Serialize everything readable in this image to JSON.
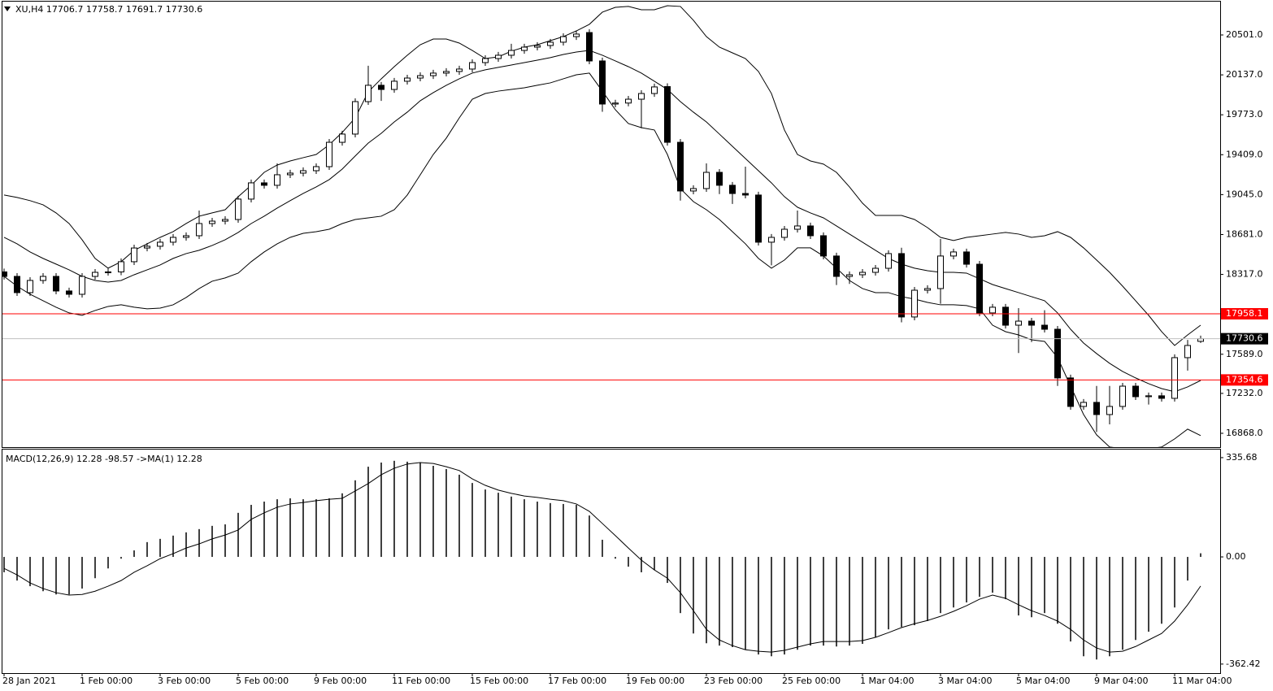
{
  "chart_data": [
    {
      "type": "candlestick",
      "title": "XU,H4  17706.7 17758.7 17691.7 17730.6",
      "categories": [
        "28 Jan 2021",
        null,
        null,
        null,
        null,
        null,
        "1 Feb 00:00",
        null,
        null,
        null,
        null,
        null,
        "3 Feb 00:00",
        null,
        null,
        null,
        null,
        null,
        "5 Feb 00:00",
        null,
        null,
        null,
        null,
        null,
        "9 Feb 00:00",
        null,
        null,
        null,
        null,
        null,
        "11 Feb 00:00",
        null,
        null,
        null,
        null,
        null,
        "15 Feb 00:00",
        null,
        null,
        null,
        null,
        null,
        "17 Feb 00:00",
        null,
        null,
        null,
        null,
        null,
        "19 Feb 00:00",
        null,
        null,
        null,
        null,
        null,
        "23 Feb 00:00",
        null,
        null,
        null,
        null,
        null,
        "25 Feb 00:00",
        null,
        null,
        null,
        null,
        null,
        "1 Mar 04:00",
        null,
        null,
        null,
        null,
        null,
        "3 Mar 04:00",
        null,
        null,
        null,
        null,
        null,
        "5 Mar 04:00",
        null,
        null,
        null,
        null,
        null,
        "9 Mar 04:00",
        null,
        null,
        null,
        null,
        null,
        "11 Mar 04:00",
        null,
        null
      ],
      "open": [
        18340,
        18299,
        18151,
        18262,
        18299,
        18166,
        18136,
        18299,
        18336,
        18340,
        18433,
        18558,
        18574,
        18611,
        18655,
        18670,
        18781,
        18803,
        18818,
        19004,
        19152,
        19130,
        19226,
        19241,
        19263,
        19300,
        19522,
        19597,
        19893,
        20042,
        20004,
        20079,
        20108,
        20130,
        20153,
        20168,
        20190,
        20249,
        20286,
        20316,
        20360,
        20390,
        20405,
        20435,
        20486,
        20523,
        20264,
        19871,
        19880,
        19915,
        19967,
        20030,
        19522,
        19078,
        19100,
        19248,
        19130,
        19055,
        19041,
        18611,
        18655,
        18729,
        18759,
        18670,
        18485,
        18299,
        18314,
        18336,
        18373,
        18507,
        17929,
        18173,
        18188,
        18485,
        18522,
        18410,
        17966,
        18018,
        17854,
        17891,
        17854,
        17817,
        17373,
        17113,
        17150,
        17039,
        17113,
        17298,
        17202,
        17210,
        17187,
        17558,
        17706.7
      ],
      "high": [
        18370,
        18329,
        18292,
        18329,
        18329,
        18196,
        18329,
        18366,
        18370,
        18463,
        18588,
        18604,
        18641,
        18685,
        18700,
        18900,
        18833,
        18848,
        19034,
        19182,
        19182,
        19330,
        19271,
        19293,
        19330,
        19552,
        19627,
        19923,
        20220,
        20072,
        20109,
        20138,
        20160,
        20183,
        20198,
        20220,
        20279,
        20316,
        20346,
        20420,
        20420,
        20435,
        20465,
        20516,
        20539,
        20553,
        20294,
        19910,
        19945,
        19997,
        20057,
        20060,
        19552,
        19130,
        19330,
        19278,
        19160,
        19300,
        19071,
        18685,
        18759,
        18900,
        18789,
        18700,
        18515,
        18344,
        18366,
        18403,
        18537,
        18560,
        18203,
        18218,
        18640,
        18552,
        18552,
        18440,
        18048,
        18048,
        18010,
        17921,
        17990,
        17847,
        17403,
        17180,
        17300,
        17300,
        17328,
        17328,
        17240,
        17240,
        17588,
        17720,
        17758.7
      ],
      "low": [
        18270,
        18121,
        18121,
        18232,
        18136,
        18106,
        18106,
        18269,
        18306,
        18310,
        18403,
        18528,
        18544,
        18581,
        18625,
        18640,
        18751,
        18773,
        18788,
        18974,
        19100,
        19100,
        19196,
        19211,
        19233,
        19270,
        19492,
        19567,
        19863,
        19900,
        19974,
        20049,
        20078,
        20100,
        20123,
        20138,
        20160,
        20219,
        20256,
        20286,
        20330,
        20360,
        20375,
        20405,
        20456,
        20234,
        19800,
        19841,
        19850,
        19650,
        19937,
        19492,
        18990,
        19048,
        19070,
        19050,
        18960,
        19011,
        18581,
        18400,
        18625,
        18699,
        18640,
        18455,
        18220,
        18230,
        18284,
        18306,
        18343,
        17880,
        17899,
        18143,
        18050,
        18455,
        18380,
        17936,
        17936,
        17824,
        17600,
        17700,
        17787,
        17300,
        17083,
        17083,
        16880,
        16950,
        17083,
        17172,
        17130,
        17157,
        17157,
        17440,
        17691.7
      ],
      "close": [
        18299,
        18151,
        18262,
        18299,
        18166,
        18136,
        18299,
        18336,
        18340,
        18433,
        18558,
        18574,
        18611,
        18655,
        18670,
        18781,
        18803,
        18818,
        19004,
        19152,
        19130,
        19226,
        19241,
        19263,
        19300,
        19522,
        19597,
        19893,
        20042,
        20004,
        20079,
        20108,
        20130,
        20153,
        20168,
        20190,
        20249,
        20286,
        20316,
        20360,
        20390,
        20405,
        20435,
        20486,
        20509,
        20264,
        19871,
        19880,
        19915,
        19967,
        20027,
        19522,
        19078,
        19100,
        19248,
        19130,
        19055,
        19041,
        18611,
        18655,
        18729,
        18759,
        18670,
        18485,
        18299,
        18314,
        18336,
        18373,
        18507,
        17929,
        18173,
        18188,
        18485,
        18522,
        18410,
        17966,
        18018,
        17854,
        17891,
        17854,
        17817,
        17373,
        17113,
        17150,
        17039,
        17113,
        17298,
        17202,
        17210,
        17187,
        17558,
        17669,
        17730.6
      ],
      "bull_color": "#ffffff",
      "bear_color": "#000000",
      "lines": [
        {
          "color": "#000000",
          "values": [
            19041,
            19019,
            18990,
            18952,
            18878,
            18781,
            18633,
            18463,
            18374,
            18433,
            18537,
            18596,
            18655,
            18707,
            18781,
            18848,
            18878,
            18907,
            19026,
            19130,
            19248,
            19315,
            19352,
            19382,
            19411,
            19500,
            19612,
            19745,
            19982,
            20101,
            20212,
            20316,
            20412,
            20464,
            20464,
            20427,
            20360,
            20286,
            20301,
            20353,
            20390,
            20412,
            20449,
            20486,
            20538,
            20598,
            20709,
            20753,
            20761,
            20731,
            20731,
            20768,
            20761,
            20635,
            20486,
            20390,
            20338,
            20286,
            20168,
            19967,
            19634,
            19411,
            19352,
            19323,
            19248,
            19115,
            18967,
            18855,
            18855,
            18855,
            18818,
            18744,
            18655,
            18626,
            18655,
            18670,
            18685,
            18700,
            18685,
            18655,
            18670,
            18707,
            18655,
            18559,
            18448,
            18336,
            18210,
            18077,
            17944,
            17795,
            17669,
            17765,
            17854
          ]
        },
        {
          "color": "#000000",
          "values": [
            18655,
            18596,
            18522,
            18463,
            18411,
            18359,
            18299,
            18262,
            18247,
            18262,
            18314,
            18359,
            18403,
            18463,
            18507,
            18537,
            18581,
            18633,
            18700,
            18781,
            18848,
            18922,
            18990,
            19056,
            19115,
            19182,
            19278,
            19397,
            19515,
            19604,
            19708,
            19797,
            19901,
            19975,
            20042,
            20101,
            20153,
            20183,
            20205,
            20227,
            20249,
            20271,
            20294,
            20323,
            20345,
            20360,
            20316,
            20264,
            20212,
            20153,
            20079,
            20004,
            19893,
            19797,
            19708,
            19597,
            19485,
            19374,
            19263,
            19152,
            19026,
            18930,
            18878,
            18833,
            18759,
            18685,
            18611,
            18537,
            18463,
            18411,
            18374,
            18351,
            18336,
            18336,
            18329,
            18277,
            18225,
            18188,
            18151,
            18114,
            18077,
            17966,
            17817,
            17691,
            17595,
            17506,
            17432,
            17373,
            17321,
            17276,
            17247,
            17291,
            17350
          ]
        },
        {
          "color": "#000000",
          "values": [
            18299,
            18210,
            18136,
            18077,
            18018,
            17966,
            17944,
            17988,
            18025,
            18040,
            18018,
            18003,
            18010,
            18040,
            18107,
            18188,
            18255,
            18285,
            18329,
            18433,
            18522,
            18596,
            18655,
            18692,
            18707,
            18729,
            18781,
            18818,
            18833,
            18848,
            18907,
            19041,
            19226,
            19411,
            19560,
            19745,
            19915,
            19967,
            19989,
            20004,
            20019,
            20042,
            20064,
            20101,
            20138,
            20153,
            19989,
            19819,
            19693,
            19656,
            19634,
            19411,
            19100,
            18981,
            18907,
            18818,
            18707,
            18596,
            18463,
            18374,
            18448,
            18559,
            18559,
            18485,
            18374,
            18262,
            18188,
            18151,
            18151,
            18114,
            18092,
            18062,
            18040,
            18040,
            18033,
            18003,
            17854,
            17795,
            17765,
            17721,
            17706,
            17558,
            17298,
            17039,
            16854,
            16743,
            16728,
            16728,
            16728,
            16743,
            16817,
            16906,
            16847
          ]
        }
      ],
      "hlines": [
        17958.1,
        17354.6
      ],
      "hline_color": "#ff0000",
      "last_price": 17730.6,
      "last_color": "#c0c0c0",
      "ylim": [
        16742,
        20805
      ],
      "yticks": [
        {
          "value": 20501,
          "label": "20501.0"
        },
        {
          "value": 20137,
          "label": "20137.0"
        },
        {
          "value": 19773,
          "label": "19773.0"
        },
        {
          "value": 19409,
          "label": "19409.0"
        },
        {
          "value": 19045,
          "label": "19045.0"
        },
        {
          "value": 18681,
          "label": "18681.0"
        },
        {
          "value": 18317,
          "label": "18317.0"
        },
        {
          "value": 17589,
          "label": "17589.0"
        },
        {
          "value": 17232,
          "label": "17232.0"
        },
        {
          "value": 16868,
          "label": "16868.0"
        }
      ]
    },
    {
      "type": "macd",
      "title": "MACD(12,26,9) 12.28 -98.57  ->MA(1) 12.28",
      "histogram": [
        -52,
        -80,
        -99,
        -116,
        -127,
        -127,
        -107,
        -72,
        -39,
        -6,
        22,
        50,
        61,
        72,
        83,
        94,
        105,
        110,
        149,
        176,
        187,
        195,
        198,
        195,
        195,
        198,
        215,
        259,
        305,
        319,
        325,
        322,
        319,
        308,
        297,
        278,
        250,
        228,
        217,
        204,
        195,
        187,
        182,
        179,
        176,
        140,
        58,
        -6,
        -33,
        -52,
        -44,
        -88,
        -190,
        -259,
        -292,
        -300,
        -305,
        -314,
        -330,
        -336,
        -330,
        -314,
        -300,
        -300,
        -303,
        -300,
        -294,
        -272,
        -245,
        -237,
        -231,
        -217,
        -190,
        -171,
        -154,
        -135,
        -121,
        -143,
        -198,
        -204,
        -190,
        -226,
        -286,
        -336,
        -347,
        -336,
        -314,
        -281,
        -253,
        -226,
        -171,
        -80,
        12.28
      ],
      "signal": [
        -39,
        -61,
        -88,
        -107,
        -121,
        -129,
        -127,
        -116,
        -99,
        -80,
        -52,
        -30,
        -6,
        11,
        30,
        44,
        61,
        74,
        91,
        127,
        149,
        168,
        179,
        184,
        190,
        195,
        198,
        223,
        248,
        278,
        300,
        314,
        319,
        316,
        305,
        292,
        264,
        242,
        226,
        215,
        206,
        201,
        195,
        190,
        179,
        154,
        113,
        72,
        30,
        -11,
        -44,
        -72,
        -121,
        -182,
        -245,
        -281,
        -300,
        -314,
        -319,
        -322,
        -316,
        -305,
        -294,
        -286,
        -286,
        -286,
        -283,
        -272,
        -256,
        -239,
        -226,
        -215,
        -201,
        -184,
        -165,
        -143,
        -129,
        -140,
        -162,
        -182,
        -198,
        -217,
        -245,
        -281,
        -308,
        -322,
        -319,
        -303,
        -281,
        -259,
        -217,
        -162,
        -98.57
      ],
      "color": "#000000",
      "ylim": [
        -393,
        363
      ],
      "yticks": [
        335.68,
        {
          "value": 0,
          "label": "0.00"
        },
        -362.42
      ]
    }
  ]
}
